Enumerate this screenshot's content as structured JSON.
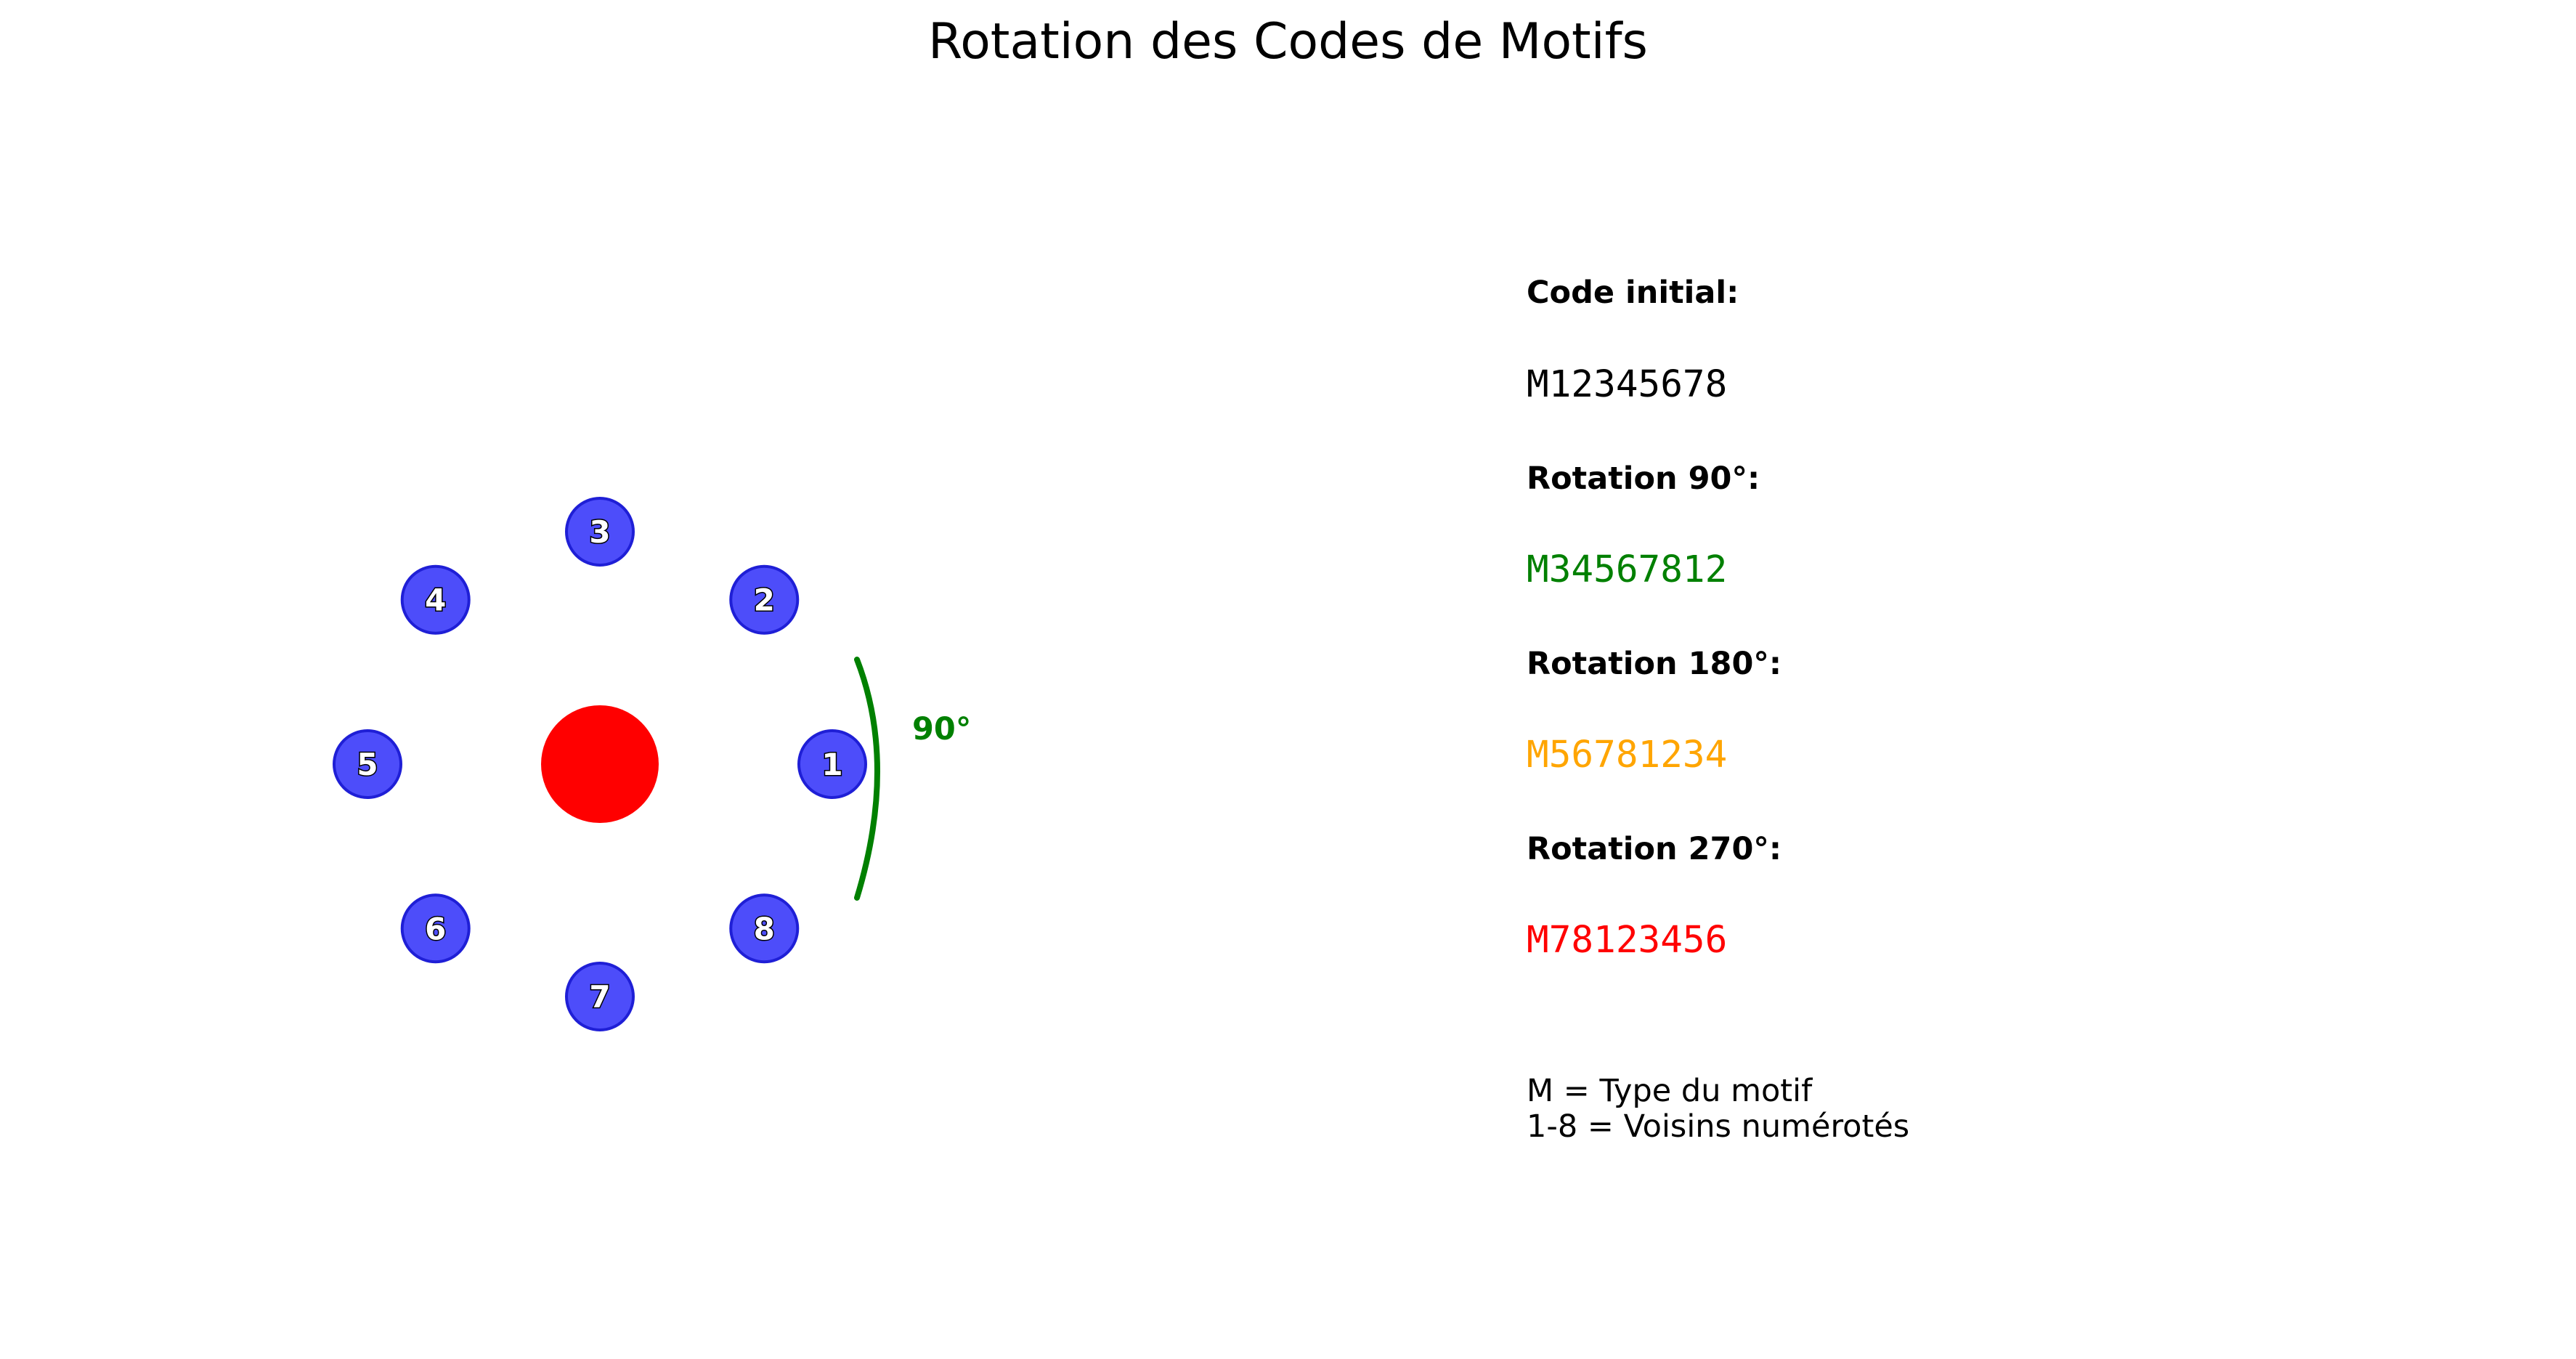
{
  "title": "Rotation des Codes de Motifs",
  "diagram": {
    "neighbors": [
      "1",
      "2",
      "3",
      "4",
      "5",
      "6",
      "7",
      "8"
    ],
    "arc_label": "90°",
    "colors": {
      "center": "#ff0000",
      "neighbor_fill": "#4d4dfa",
      "neighbor_stroke": "#1f1fd6",
      "arc": "#008000"
    }
  },
  "codes": {
    "initial": {
      "label": "Code initial:",
      "value": "M12345678",
      "color": "#000000"
    },
    "rot90": {
      "label": "Rotation 90°:",
      "value": "M34567812",
      "color": "#008000"
    },
    "rot180": {
      "label": "Rotation 180°:",
      "value": "M56781234",
      "color": "#ffa500"
    },
    "rot270": {
      "label": "Rotation 270°:",
      "value": "M78123456",
      "color": "#ff0000"
    }
  },
  "legend": {
    "line1": "M = Type du motif",
    "line2": "1-8 = Voisins numérotés"
  }
}
